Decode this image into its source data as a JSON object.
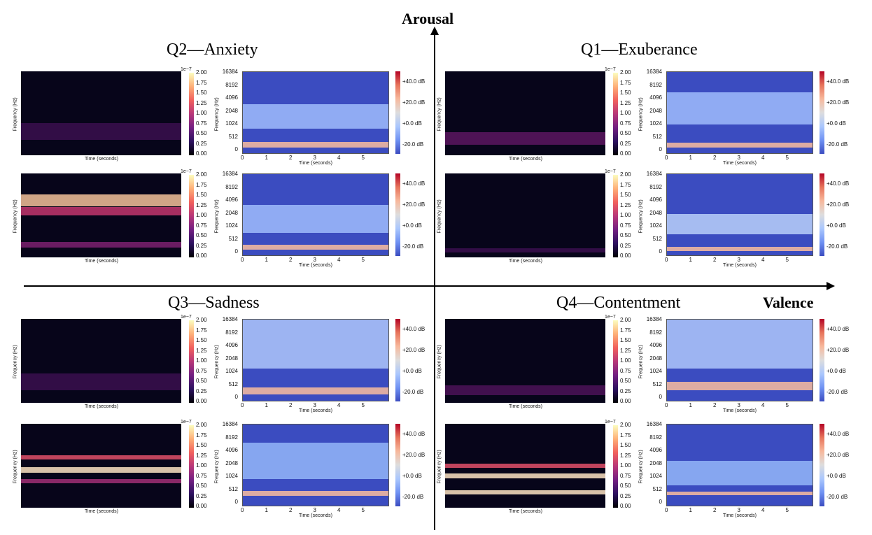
{
  "axes": {
    "vertical_label": "Arousal",
    "horizontal_label": "Valence"
  },
  "quadrants": [
    {
      "title": "Q2—Anxiety"
    },
    {
      "title": "Q1—Exuberance"
    },
    {
      "title": "Q3—Sadness"
    },
    {
      "title": "Q4—Contentment"
    }
  ],
  "labels": {
    "frequency": "Frequency (Hz)",
    "time": "Time (seconds)",
    "mel_exponent": "1e−7"
  },
  "mel_colorbar_ticks": [
    "2.00",
    "1.75",
    "1.50",
    "1.25",
    "1.00",
    "0.75",
    "0.50",
    "0.25",
    "0.00"
  ],
  "db_colorbar_ticks": [
    "+40.0 dB",
    "+20.0 dB",
    "+0.0 dB",
    "-20.0 dB"
  ],
  "freq_ticks": [
    "16384",
    "8192",
    "4096",
    "2048",
    "1024",
    "512",
    "0"
  ],
  "time_ticks": [
    "0",
    "1",
    "2",
    "3",
    "4",
    "5"
  ],
  "colors": {
    "mel_bg": "#07051a",
    "stft_bg": "#3b4cc0",
    "axis": "#000000"
  }
}
